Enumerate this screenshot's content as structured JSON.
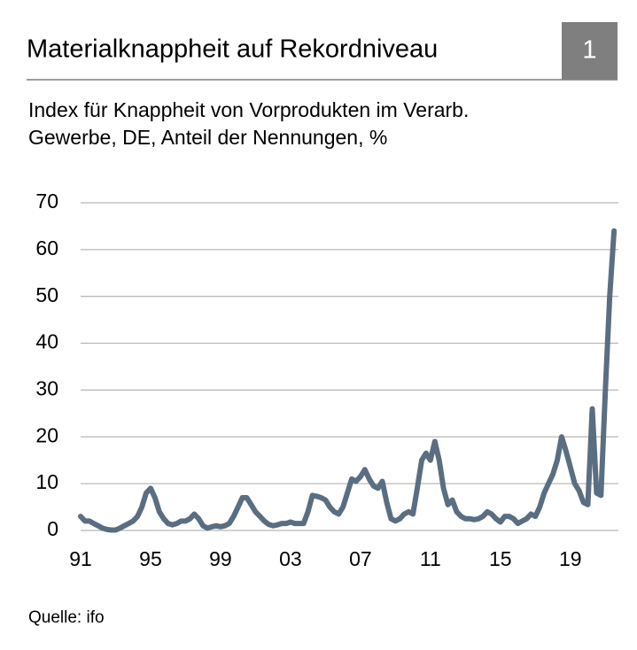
{
  "chart_data": {
    "type": "line",
    "title": "Materialknappheit auf Rekordniveau",
    "badge": "1",
    "subtitle": [
      "Index für Knappheit von Vorprodukten im Verarb.",
      "Gewerbe, DE, Anteil der Nennungen, %"
    ],
    "source": "Quelle: ifo",
    "color": "#5a6e82",
    "x": [
      1991,
      1991.25,
      1991.5,
      1991.75,
      1992,
      1992.25,
      1992.5,
      1992.75,
      1993,
      1993.25,
      1993.5,
      1993.75,
      1994,
      1994.25,
      1994.5,
      1994.75,
      1995,
      1995.25,
      1995.5,
      1995.75,
      1996,
      1996.25,
      1996.5,
      1996.75,
      1997,
      1997.25,
      1997.5,
      1997.75,
      1998,
      1998.25,
      1998.5,
      1998.75,
      1999,
      1999.25,
      1999.5,
      1999.75,
      2000,
      2000.25,
      2000.5,
      2000.75,
      2001,
      2001.25,
      2001.5,
      2001.75,
      2002,
      2002.25,
      2002.5,
      2002.75,
      2003,
      2003.25,
      2003.5,
      2003.75,
      2004,
      2004.25,
      2004.5,
      2004.75,
      2005,
      2005.25,
      2005.5,
      2005.75,
      2006,
      2006.25,
      2006.5,
      2006.75,
      2007,
      2007.25,
      2007.5,
      2007.75,
      2008,
      2008.25,
      2008.5,
      2008.75,
      2009,
      2009.25,
      2009.5,
      2009.75,
      2010,
      2010.25,
      2010.5,
      2010.75,
      2011,
      2011.25,
      2011.5,
      2011.75,
      2012,
      2012.25,
      2012.5,
      2012.75,
      2013,
      2013.25,
      2013.5,
      2013.75,
      2014,
      2014.25,
      2014.5,
      2014.75,
      2015,
      2015.25,
      2015.5,
      2015.75,
      2016,
      2016.25,
      2016.5,
      2016.75,
      2017,
      2017.25,
      2017.5,
      2017.75,
      2018,
      2018.25,
      2018.5,
      2018.75,
      2019,
      2019.25,
      2019.5,
      2019.75,
      2020,
      2020.25,
      2020.5,
      2020.75,
      2021,
      2021.25,
      2021.5
    ],
    "values": [
      3,
      2,
      2,
      1.5,
      1,
      0.5,
      0.2,
      0.1,
      0.1,
      0.5,
      1,
      1.5,
      2,
      3,
      5,
      8,
      9,
      7,
      4,
      2.5,
      1.5,
      1.2,
      1.5,
      2,
      2,
      2.5,
      3.5,
      2.5,
      1,
      0.5,
      0.8,
      1,
      0.8,
      1,
      1.5,
      3,
      5,
      7,
      7,
      5.5,
      4,
      3,
      2,
      1.3,
      1,
      1.2,
      1.5,
      1.5,
      1.8,
      1.5,
      1.5,
      1.5,
      4,
      7.5,
      7.3,
      7,
      6.5,
      5,
      4,
      3.5,
      5,
      8,
      11,
      10.5,
      11.5,
      13,
      11,
      9.5,
      9,
      10.5,
      6,
      2.5,
      2,
      2.5,
      3.5,
      4,
      3.5,
      9,
      15,
      16.5,
      15,
      19,
      15,
      9,
      5.5,
      6.5,
      4,
      3,
      2.5,
      2.5,
      2.3,
      2.5,
      3,
      4,
      3.5,
      2.5,
      1.8,
      3,
      3,
      2.5,
      1.5,
      2,
      2.5,
      3.5,
      3,
      5,
      8,
      10,
      12,
      15,
      20,
      17,
      13.5,
      10,
      8.5,
      6,
      5.5,
      26,
      8,
      7.5,
      30,
      50,
      64
    ],
    "xlim": [
      1991,
      2022
    ],
    "xticks": [
      {
        "value": 1991,
        "label": "91"
      },
      {
        "value": 1995,
        "label": "95"
      },
      {
        "value": 1999,
        "label": "99"
      },
      {
        "value": 2003,
        "label": "03"
      },
      {
        "value": 2007,
        "label": "07"
      },
      {
        "value": 2011,
        "label": "11"
      },
      {
        "value": 2015,
        "label": "15"
      },
      {
        "value": 2019,
        "label": "19"
      }
    ],
    "ylim": [
      0,
      70
    ],
    "yticks": [
      0,
      10,
      20,
      30,
      40,
      50,
      60,
      70
    ],
    "grid": true
  }
}
